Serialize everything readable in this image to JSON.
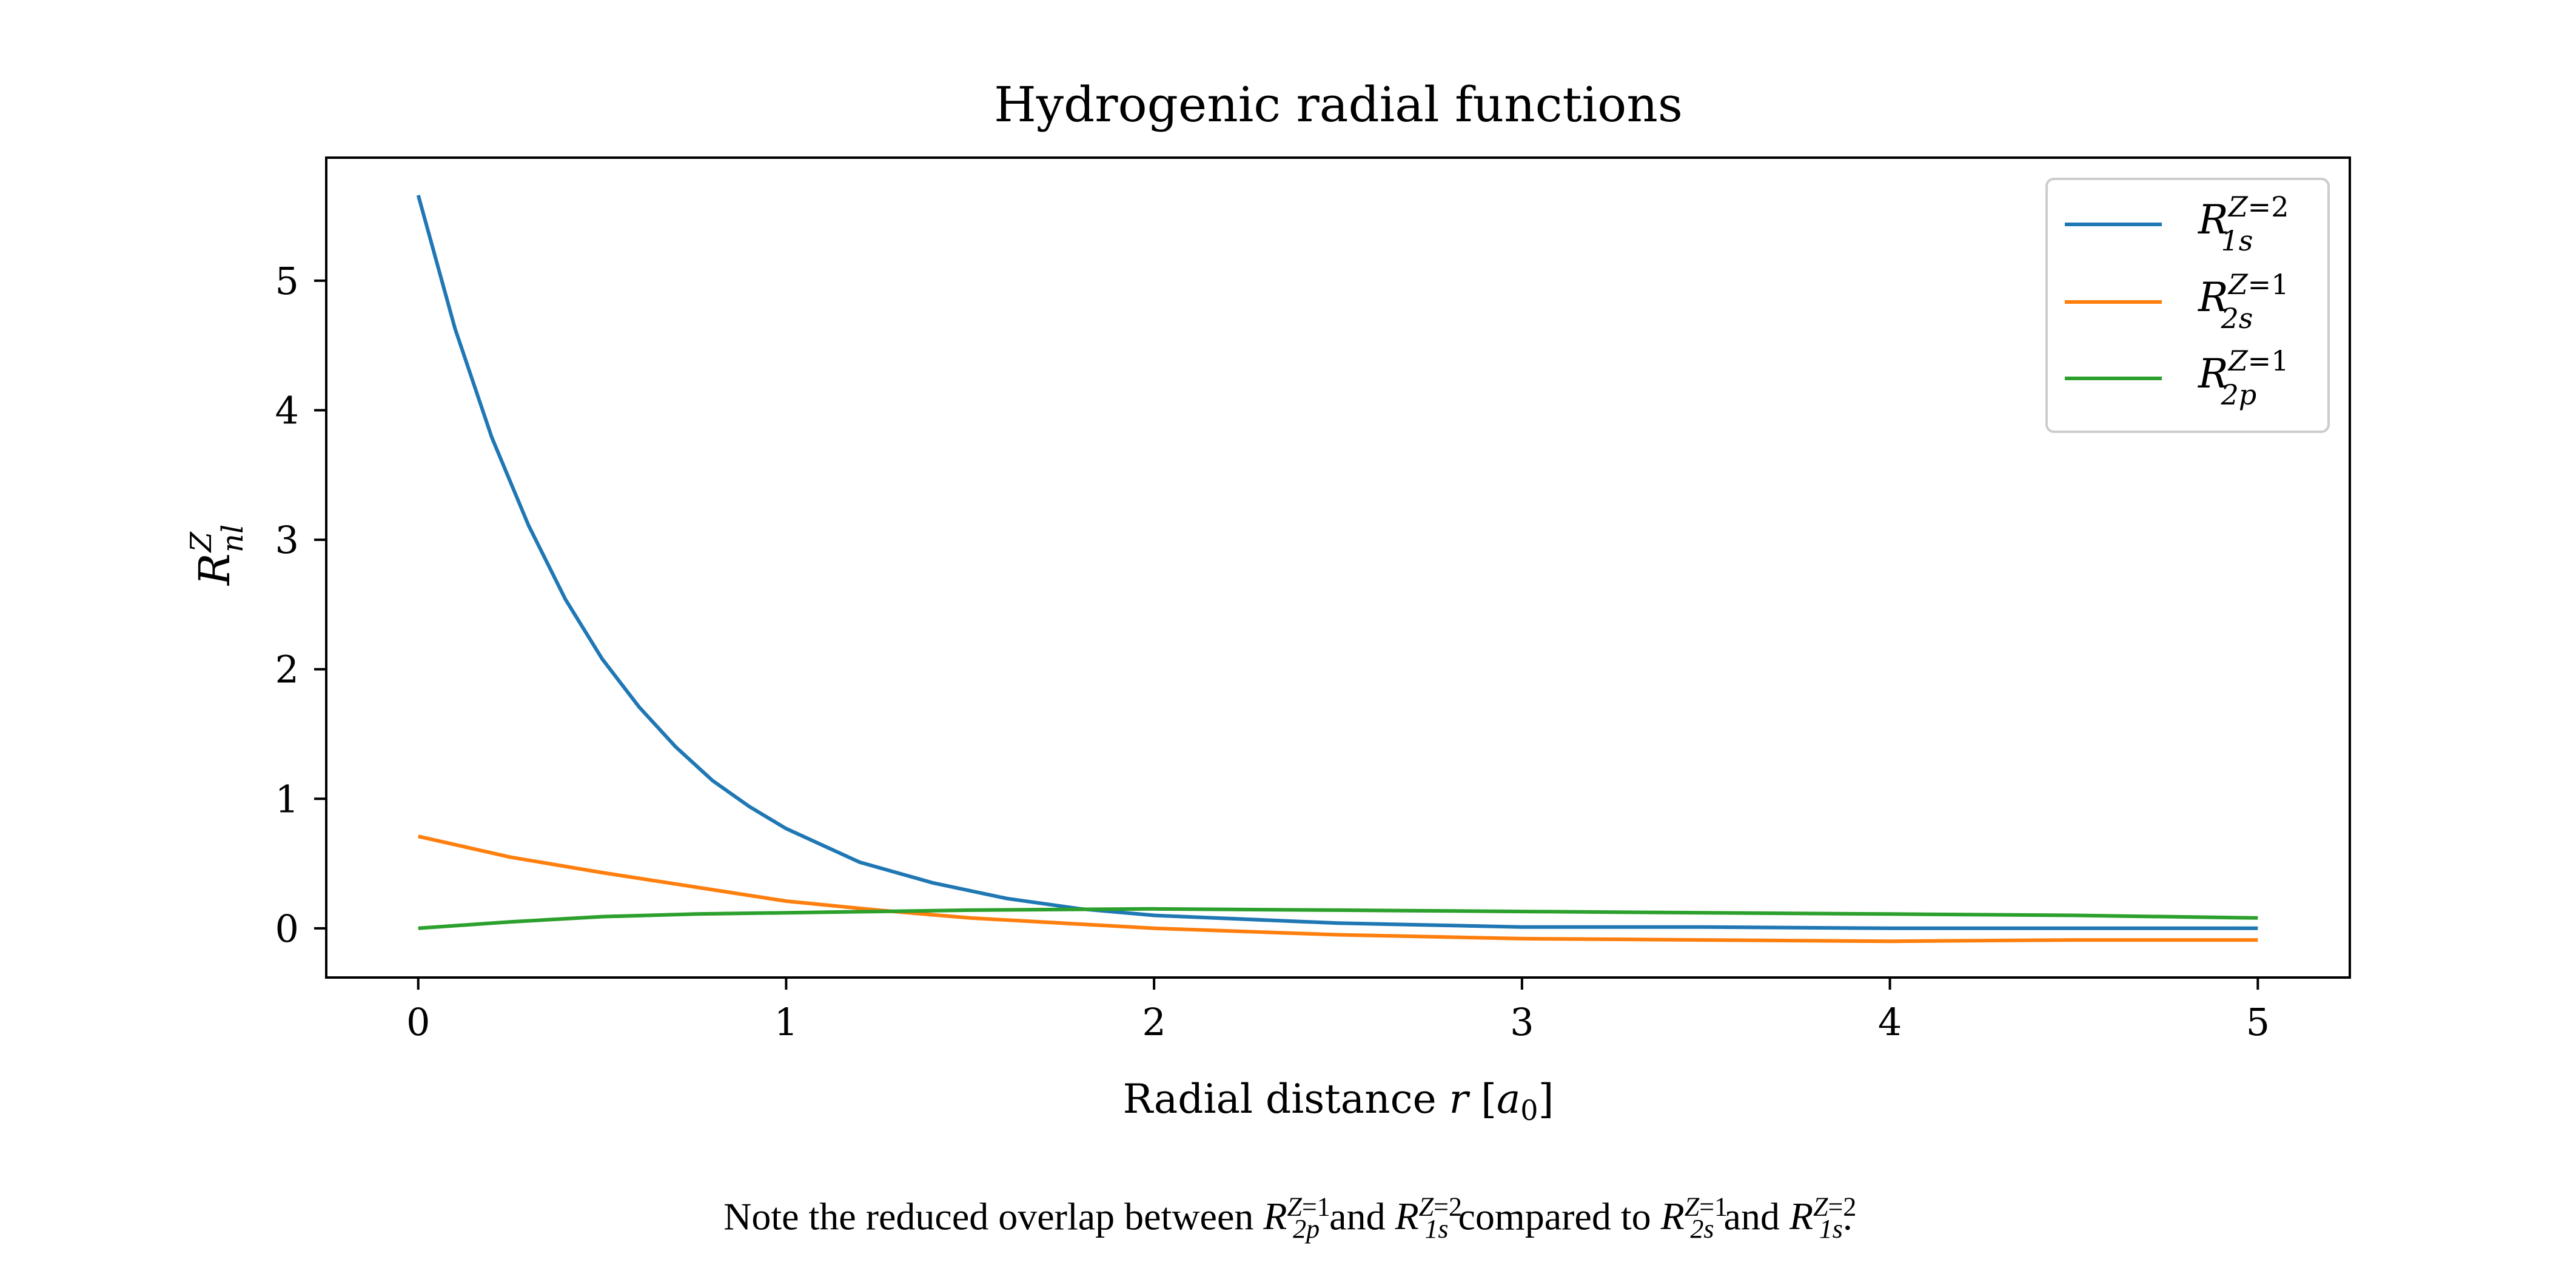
{
  "chart_data": {
    "type": "line",
    "title": "Hydrogenic radial functions",
    "xlabel": "Radial distance r [a0]",
    "ylabel": "R_nl^Z",
    "xlim": [
      -0.25,
      5.25
    ],
    "ylim": [
      -0.38,
      5.95
    ],
    "xticks": [
      0,
      1,
      2,
      3,
      4,
      5
    ],
    "yticks": [
      0,
      1,
      2,
      3,
      4,
      5
    ],
    "grid": false,
    "legend_position": "top-right",
    "series": [
      {
        "name": "R_1s^Z=2",
        "color": "#1f77b4",
        "x": [
          0,
          0.1,
          0.2,
          0.3,
          0.4,
          0.5,
          0.6,
          0.7,
          0.8,
          0.9,
          1.0,
          1.2,
          1.4,
          1.6,
          1.8,
          2.0,
          2.5,
          3.0,
          3.5,
          4.0,
          4.5,
          5.0
        ],
        "values": [
          5.66,
          4.63,
          3.79,
          3.11,
          2.54,
          2.08,
          1.71,
          1.4,
          1.14,
          0.94,
          0.77,
          0.51,
          0.35,
          0.23,
          0.15,
          0.1,
          0.04,
          0.01,
          0.01,
          0.0,
          0.0,
          0.0
        ]
      },
      {
        "name": "R_2s^Z=1",
        "color": "#ff7f0e",
        "x": [
          0,
          0.25,
          0.5,
          0.75,
          1.0,
          1.25,
          1.5,
          1.75,
          2.0,
          2.5,
          3.0,
          3.5,
          4.0,
          4.5,
          5.0
        ],
        "values": [
          0.71,
          0.55,
          0.43,
          0.32,
          0.21,
          0.14,
          0.08,
          0.04,
          0.0,
          -0.05,
          -0.08,
          -0.09,
          -0.1,
          -0.09,
          -0.09
        ]
      },
      {
        "name": "R_2p^Z=1",
        "color": "#2ca02c",
        "x": [
          0,
          0.25,
          0.5,
          0.75,
          1.0,
          1.25,
          1.5,
          2.0,
          2.5,
          3.0,
          3.5,
          4.0,
          4.5,
          5.0
        ],
        "values": [
          0.0,
          0.05,
          0.09,
          0.11,
          0.12,
          0.13,
          0.14,
          0.15,
          0.14,
          0.13,
          0.12,
          0.11,
          0.1,
          0.08
        ]
      }
    ]
  },
  "caption": {
    "prefix": "Note the reduced overlap between",
    "and1": "and",
    "mid": "compared to",
    "and2": "and",
    "suffix": "."
  }
}
